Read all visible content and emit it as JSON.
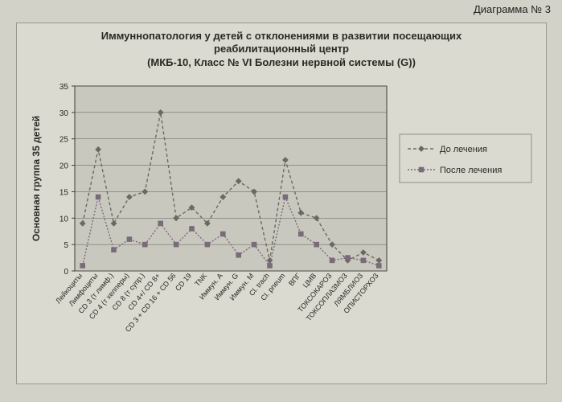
{
  "diagram_label": "Диаграмма № 3",
  "title_line1": "Иммуннопатология у детей с отклонениями в развитии посещающих",
  "title_line2": "реабилитационный центр",
  "title_line3": "(МКБ-10, Класс № VI Болезни нервной системы (G))",
  "chart": {
    "type": "line",
    "y_axis_title": "Основная группа 35 детей",
    "ylim": [
      0,
      35
    ],
    "ytick_step": 5,
    "yticks": [
      0,
      5,
      10,
      15,
      20,
      25,
      30,
      35
    ],
    "categories": [
      "Лейкоциты",
      "Лимфоциты",
      "CD 3 (т лимф.)",
      "CD 4 (т хелперы)",
      "CD 8 (т супр.)",
      "CD 4+/ CD 8+",
      "CD 3 + CD 16 + CD 56",
      "CD 19",
      "TNK",
      "Иммун. А",
      "Иммун. G",
      "Иммун. М",
      "Cl. trach",
      "Cl. pneum",
      "ВПГ",
      "ЦМВ",
      "ТОКСОКАРОЗ",
      "ТОКСОПЛАЗМОЗ",
      "ЛЯМБЛИОЗ",
      "ОПИСТОРХОЗ"
    ],
    "series": [
      {
        "name": "До лечения",
        "marker": "diamond",
        "dash": "4,3",
        "color": "#6a6a62",
        "values": [
          9,
          23,
          9,
          14,
          15,
          30,
          10,
          12,
          9,
          14,
          17,
          15,
          2,
          21,
          11,
          10,
          5,
          2,
          3.5,
          2
        ]
      },
      {
        "name": "После лечения",
        "marker": "square",
        "dash": "2,2",
        "color": "#7a6a7a",
        "values": [
          1,
          14,
          4,
          6,
          5,
          9,
          5,
          8,
          5,
          7,
          3,
          5,
          1,
          14,
          7,
          5,
          2,
          2.5,
          2,
          1
        ]
      }
    ],
    "legend_pos": "right",
    "plot_bg": "#c9c8be",
    "panel_bg": "#dadad0",
    "grid_color": "#5c5b52",
    "axis_color": "#3d3c35",
    "label_fontsize": 12,
    "tick_fontsize": 10,
    "xlabel_fontsize": 9,
    "legend_fontsize": 11
  }
}
